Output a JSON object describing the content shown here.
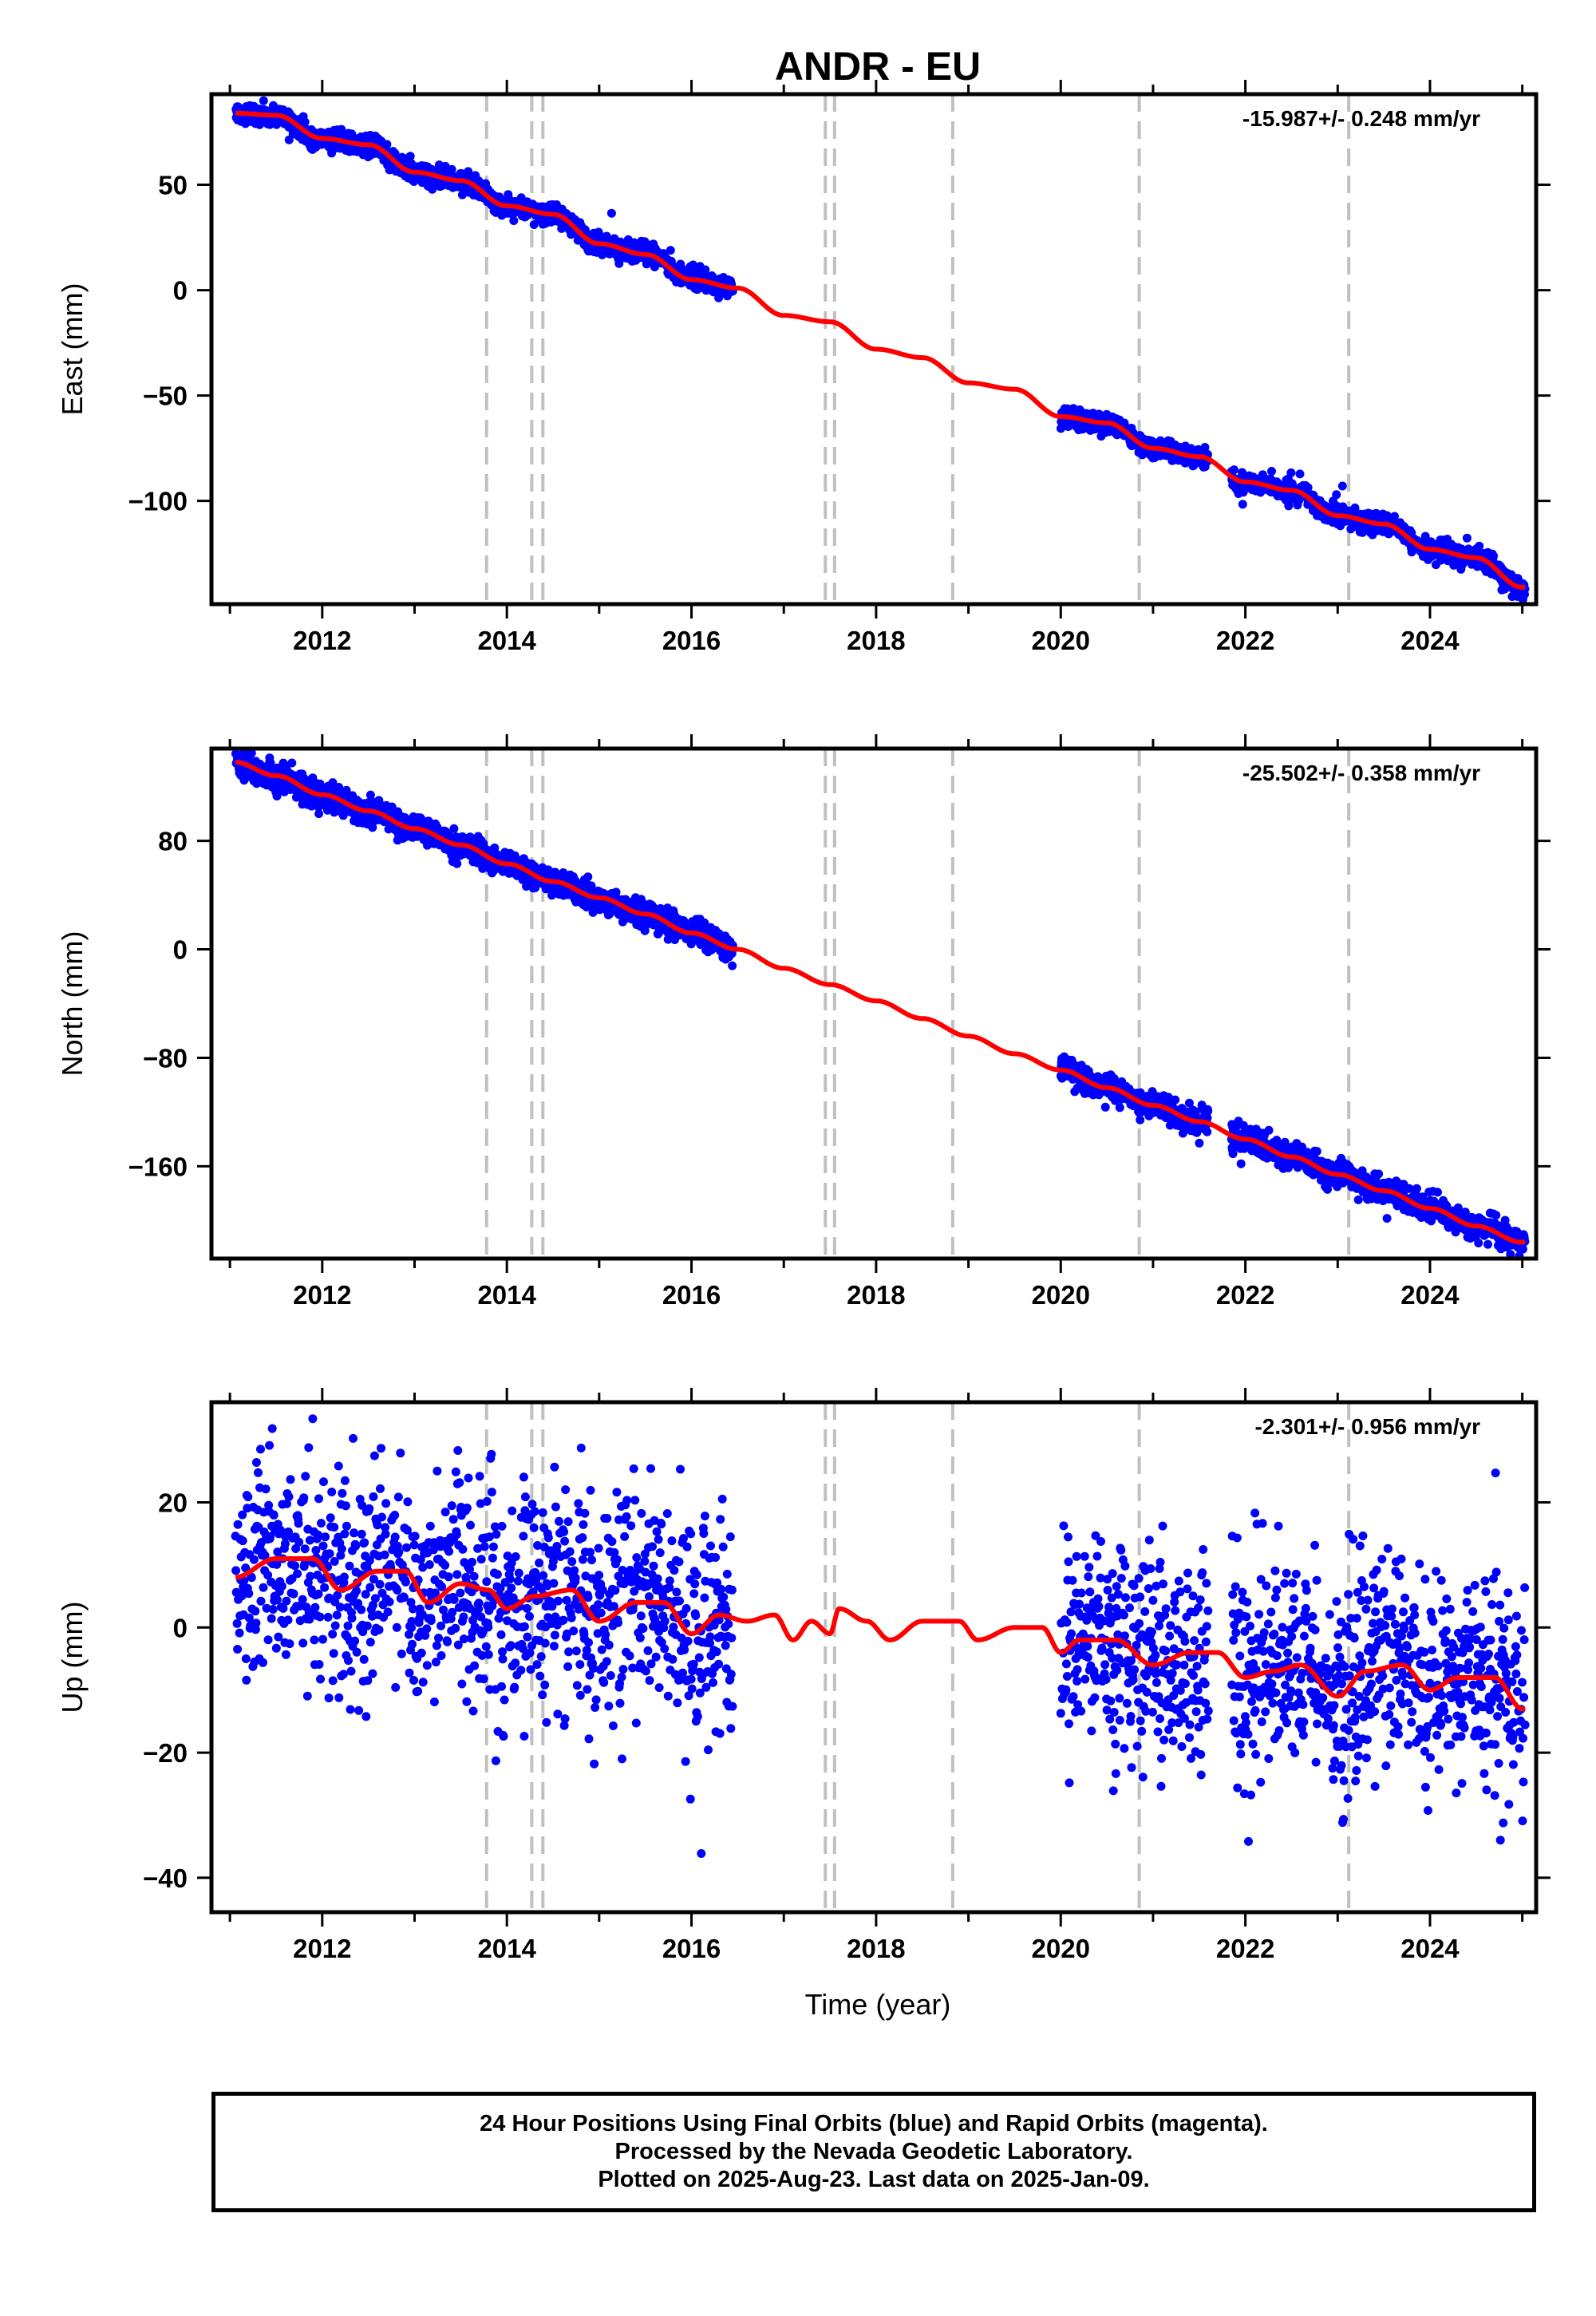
{
  "chart_data": {
    "type": "scatter",
    "title": "ANDR - EU",
    "xlabel": "Time (year)",
    "xlim": [
      2010.8,
      2025.15
    ],
    "x_ticks": [
      2012,
      2014,
      2016,
      2018,
      2020,
      2022,
      2024
    ],
    "equipment_changes": [
      2013.78,
      2014.27,
      2014.39,
      2017.45,
      2017.55,
      2018.83,
      2020.85,
      2023.12
    ],
    "data_gaps": [
      [
        2016.45,
        2020.0
      ],
      [
        2021.6,
        2021.85
      ]
    ],
    "data_start": 2011.06,
    "data_end": 2025.03,
    "panels": [
      {
        "name": "east",
        "ylabel": "East (mm)",
        "rate": "-15.987+/- 0.248 mm/yr",
        "ylim": [
          -149,
          93
        ],
        "y_ticks": [
          50,
          0,
          -50,
          -100
        ],
        "y_tick_labels": [
          "50",
          "0",
          "−50",
          "−100"
        ],
        "model_points": [
          [
            2011.05,
            84
          ],
          [
            2011.5,
            83
          ],
          [
            2012.0,
            72
          ],
          [
            2012.5,
            69
          ],
          [
            2013.0,
            56
          ],
          [
            2013.5,
            52
          ],
          [
            2014.0,
            40
          ],
          [
            2014.5,
            36
          ],
          [
            2015.0,
            22
          ],
          [
            2015.5,
            17
          ],
          [
            2016.0,
            5
          ],
          [
            2016.5,
            1
          ],
          [
            2017.0,
            -12
          ],
          [
            2017.5,
            -15
          ],
          [
            2018.0,
            -28
          ],
          [
            2018.5,
            -32
          ],
          [
            2019.0,
            -44
          ],
          [
            2019.5,
            -47
          ],
          [
            2020.0,
            -60
          ],
          [
            2020.5,
            -63
          ],
          [
            2021.0,
            -75
          ],
          [
            2021.5,
            -79
          ],
          [
            2022.0,
            -91
          ],
          [
            2022.5,
            -95
          ],
          [
            2023.0,
            -107
          ],
          [
            2023.5,
            -111
          ],
          [
            2024.0,
            -123
          ],
          [
            2024.5,
            -127
          ],
          [
            2025.0,
            -141
          ]
        ],
        "scatter_sd": 2.3
      },
      {
        "name": "north",
        "ylabel": "North (mm)",
        "rate": "-25.502+/- 0.358 mm/yr",
        "ylim": [
          -228,
          148
        ],
        "y_ticks": [
          80,
          0,
          -80,
          -160
        ],
        "y_tick_labels": [
          "80",
          "0",
          "−80",
          "−160"
        ],
        "model_points": [
          [
            2011.05,
            138
          ],
          [
            2011.5,
            128
          ],
          [
            2012.0,
            114
          ],
          [
            2012.5,
            102
          ],
          [
            2013.0,
            89
          ],
          [
            2013.5,
            77
          ],
          [
            2014.0,
            63
          ],
          [
            2014.5,
            50
          ],
          [
            2015.0,
            38
          ],
          [
            2015.5,
            26
          ],
          [
            2016.0,
            12
          ],
          [
            2016.5,
            0
          ],
          [
            2017.0,
            -14
          ],
          [
            2017.5,
            -26
          ],
          [
            2018.0,
            -38
          ],
          [
            2018.5,
            -51
          ],
          [
            2019.0,
            -64
          ],
          [
            2019.5,
            -77
          ],
          [
            2020.0,
            -89
          ],
          [
            2020.5,
            -102
          ],
          [
            2021.0,
            -115
          ],
          [
            2021.5,
            -127
          ],
          [
            2022.0,
            -140
          ],
          [
            2022.5,
            -153
          ],
          [
            2023.0,
            -166
          ],
          [
            2023.5,
            -178
          ],
          [
            2024.0,
            -191
          ],
          [
            2024.5,
            -204
          ],
          [
            2025.0,
            -216
          ]
        ],
        "scatter_sd": 4.5
      },
      {
        "name": "up",
        "ylabel": "Up (mm)",
        "rate": "-2.301+/- 0.956 mm/yr",
        "ylim": [
          -45.5,
          36
        ],
        "y_ticks": [
          20,
          0,
          -20,
          -40
        ],
        "y_tick_labels": [
          "20",
          "0",
          "−20",
          "−40"
        ],
        "model_points": [
          [
            2011.05,
            8
          ],
          [
            2011.5,
            11
          ],
          [
            2011.9,
            11
          ],
          [
            2012.2,
            6
          ],
          [
            2012.6,
            9
          ],
          [
            2012.9,
            9
          ],
          [
            2013.15,
            4
          ],
          [
            2013.5,
            7
          ],
          [
            2013.8,
            6
          ],
          [
            2014.0,
            3
          ],
          [
            2014.3,
            5
          ],
          [
            2014.7,
            6
          ],
          [
            2015.0,
            1
          ],
          [
            2015.4,
            4
          ],
          [
            2015.7,
            4
          ],
          [
            2016.0,
            -1
          ],
          [
            2016.3,
            2
          ],
          [
            2016.6,
            1
          ],
          [
            2016.9,
            2
          ],
          [
            2017.1,
            -2
          ],
          [
            2017.3,
            1
          ],
          [
            2017.5,
            -1
          ],
          [
            2017.6,
            3
          ],
          [
            2017.9,
            1
          ],
          [
            2018.15,
            -2
          ],
          [
            2018.5,
            1
          ],
          [
            2018.9,
            1
          ],
          [
            2019.1,
            -2
          ],
          [
            2019.5,
            0
          ],
          [
            2019.8,
            0
          ],
          [
            2020.0,
            -4
          ],
          [
            2020.2,
            -2
          ],
          [
            2020.6,
            -2
          ],
          [
            2021.0,
            -6
          ],
          [
            2021.4,
            -4
          ],
          [
            2021.7,
            -4
          ],
          [
            2022.0,
            -8
          ],
          [
            2022.3,
            -7
          ],
          [
            2022.6,
            -6
          ],
          [
            2023.0,
            -11
          ],
          [
            2023.3,
            -7
          ],
          [
            2023.7,
            -6
          ],
          [
            2024.0,
            -10
          ],
          [
            2024.3,
            -8
          ],
          [
            2024.7,
            -8
          ],
          [
            2025.0,
            -13
          ]
        ],
        "scatter_sd": 8.5
      }
    ]
  },
  "footer": {
    "line1": "24 Hour Positions Using Final Orbits (blue) and Rapid Orbits (magenta).",
    "line2": "Processed by the Nevada Geodetic Laboratory.",
    "line3": "Plotted on 2025-Aug-23. Last data on 2025-Jan-09."
  },
  "colors": {
    "data": "#0000ff",
    "model": "#ff0000",
    "equipment_change": "#c0c0c0",
    "frame": "#000000"
  }
}
